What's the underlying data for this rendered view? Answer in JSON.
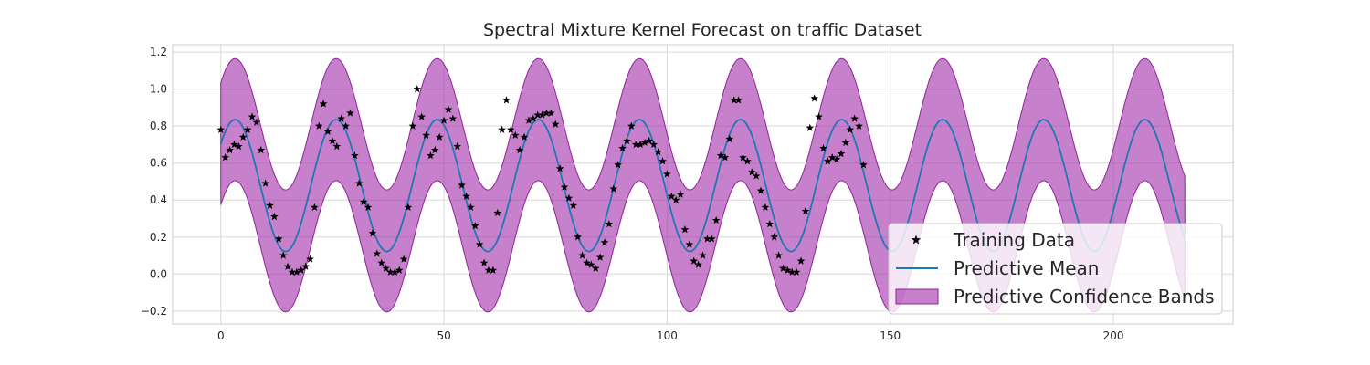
{
  "chart_data": {
    "type": "line",
    "title": "Spectral Mixture Kernel Forecast on traffic Dataset",
    "xlabel": "",
    "ylabel": "",
    "xlim": [
      -10.8,
      226.8
    ],
    "ylim": [
      -0.27,
      1.24
    ],
    "xticks": [
      0,
      50,
      100,
      150,
      200
    ],
    "xtick_labels": [
      "0",
      "50",
      "100",
      "150",
      "200"
    ],
    "yticks": [
      -0.2,
      0.0,
      0.2,
      0.4,
      0.6,
      0.8,
      1.0,
      1.2
    ],
    "ytick_labels": [
      "−0.2",
      "0.0",
      "0.2",
      "0.4",
      "0.6",
      "0.8",
      "1.0",
      "1.2"
    ],
    "grid": true,
    "legend_position": "lower-right",
    "colors": {
      "training": "#000000",
      "mean": "#1f77b4",
      "band_fill": "#a22ca8",
      "band_edge": "#8e2496",
      "grid": "#d9d9d9",
      "spine": "#cccccc"
    },
    "series": [
      {
        "name": "Training Data",
        "kind": "scatter",
        "marker": "star",
        "x": [
          0,
          1,
          2,
          3,
          4,
          5,
          6,
          7,
          8,
          9,
          10,
          11,
          12,
          13,
          14,
          15,
          16,
          17,
          18,
          19,
          20,
          21,
          22,
          23,
          24,
          25,
          26,
          27,
          28,
          29,
          30,
          31,
          32,
          33,
          34,
          35,
          36,
          37,
          38,
          39,
          40,
          41,
          42,
          43,
          44,
          45,
          46,
          47,
          48,
          49,
          50,
          51,
          52,
          53,
          54,
          55,
          56,
          57,
          58,
          59,
          60,
          61,
          62,
          63,
          64,
          65,
          66,
          67,
          68,
          69,
          70,
          71,
          72,
          73,
          74,
          75,
          76,
          77,
          78,
          79,
          80,
          81,
          82,
          83,
          84,
          85,
          86,
          87,
          88,
          89,
          90,
          91,
          92,
          93,
          94,
          95,
          96,
          97,
          98,
          99,
          100,
          101,
          102,
          103,
          104,
          105,
          106,
          107,
          108,
          109,
          110,
          111,
          112,
          113,
          114,
          115,
          116,
          117,
          118,
          119,
          120,
          121,
          122,
          123,
          124,
          125,
          126,
          127,
          128,
          129,
          130,
          131,
          132,
          133,
          134,
          135,
          136,
          137,
          138,
          139,
          140,
          141,
          142,
          143,
          144
        ],
        "y": [
          0.78,
          0.63,
          0.67,
          0.7,
          0.69,
          0.74,
          0.78,
          0.85,
          0.82,
          0.67,
          0.49,
          0.37,
          0.31,
          0.19,
          0.1,
          0.04,
          0.01,
          0.01,
          0.02,
          0.04,
          0.08,
          0.36,
          0.8,
          0.92,
          0.77,
          0.72,
          0.69,
          0.84,
          0.8,
          0.87,
          0.64,
          0.49,
          0.39,
          0.36,
          0.22,
          0.11,
          0.06,
          0.03,
          0.01,
          0.01,
          0.02,
          0.08,
          0.36,
          0.8,
          1.0,
          0.85,
          0.75,
          0.64,
          0.67,
          0.74,
          0.83,
          0.89,
          0.84,
          0.69,
          0.48,
          0.42,
          0.36,
          0.26,
          0.16,
          0.06,
          0.02,
          0.02,
          0.33,
          0.78,
          0.94,
          0.78,
          0.75,
          0.67,
          0.74,
          0.83,
          0.84,
          0.86,
          0.86,
          0.87,
          0.87,
          0.81,
          0.57,
          0.47,
          0.41,
          0.37,
          0.2,
          0.1,
          0.06,
          0.05,
          0.03,
          0.09,
          0.17,
          0.27,
          0.46,
          0.59,
          0.68,
          0.72,
          0.8,
          0.7,
          0.7,
          0.71,
          0.72,
          0.7,
          0.66,
          0.61,
          0.54,
          0.42,
          0.4,
          0.43,
          0.24,
          0.16,
          0.07,
          0.05,
          0.1,
          0.19,
          0.19,
          0.29,
          0.64,
          0.63,
          0.73,
          0.94,
          0.94,
          0.63,
          0.61,
          0.55,
          0.53,
          0.45,
          0.36,
          0.27,
          0.2,
          0.1,
          0.03,
          0.02,
          0.01,
          0.01,
          0.07,
          0.34,
          0.79,
          0.95,
          0.85,
          0.68,
          0.61,
          0.63,
          0.62,
          0.65,
          0.71,
          0.78,
          0.84,
          0.8,
          0.59
        ]
      },
      {
        "name": "Predictive Mean",
        "kind": "line",
        "function": "0.4785 + 0.3565 * cos(2*pi*(x - 3.2)/22.65)",
        "x_range": [
          0,
          216
        ]
      },
      {
        "name": "Predictive Confidence Bands",
        "kind": "band",
        "lower_function": "0.15 + 0.355 * cos(2*pi*(x - 3.2)/22.65)",
        "upper_function": "0.81 + 0.355 * cos(2*pi*(x - 3.2)/22.65)",
        "x_range": [
          0,
          216
        ]
      }
    ]
  }
}
